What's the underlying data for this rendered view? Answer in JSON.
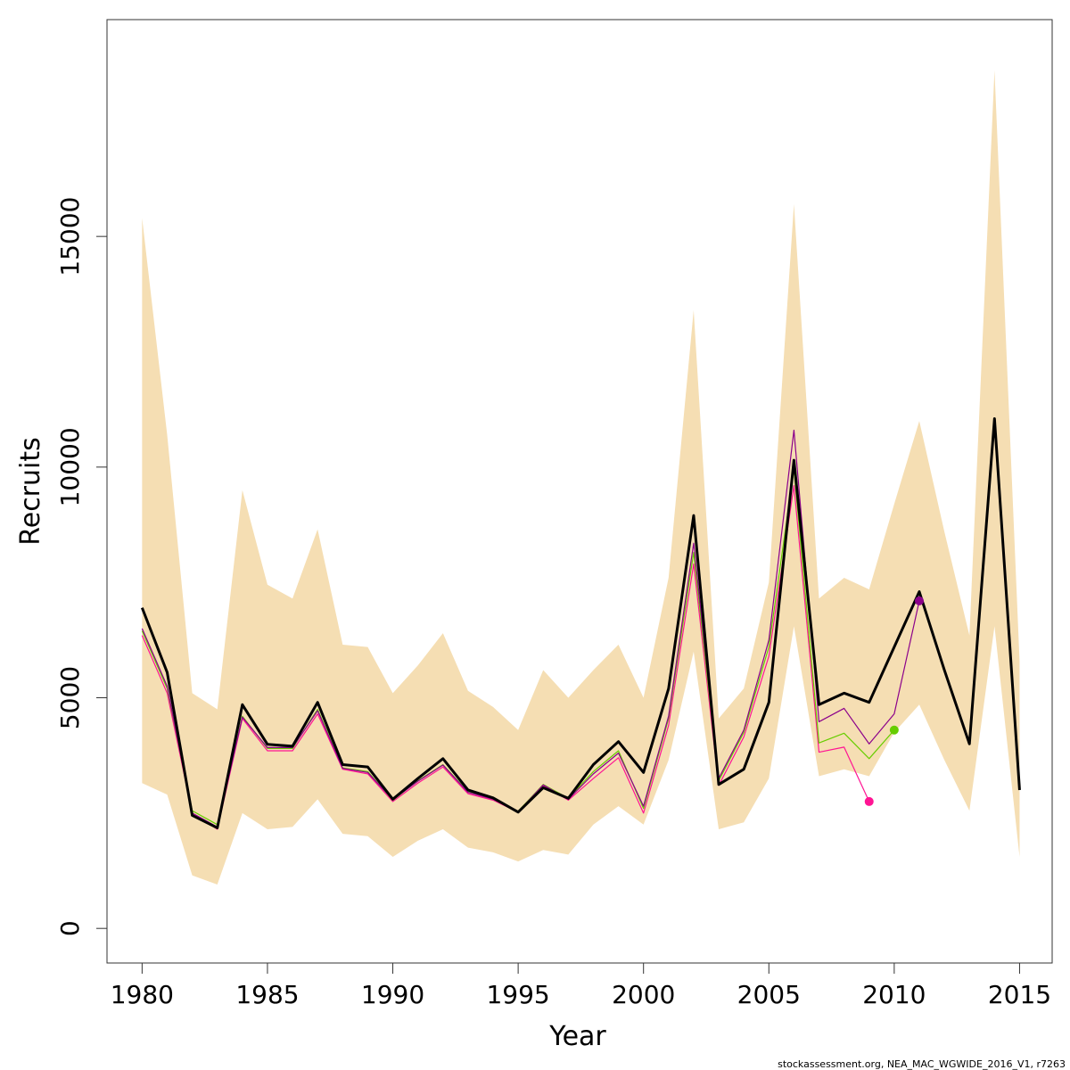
{
  "chart_data": {
    "type": "line",
    "title": "",
    "xlabel": "Year",
    "ylabel": "Recruits",
    "xlim": [
      1978.6,
      2016.3
    ],
    "ylim": [
      -750,
      19700
    ],
    "x_ticks": [
      1980,
      1985,
      1990,
      1995,
      2000,
      2005,
      2010,
      2015
    ],
    "y_ticks": [
      0,
      5000,
      10000,
      15000
    ],
    "grid": false,
    "legend": "none",
    "caption": "stockassessment.org, NEA_MAC_WGWIDE_2016_V1, r7263",
    "colors": {
      "band": "#f5deb3",
      "main": "#000000",
      "series_2009": "#ff1493",
      "series_2010": "#66cd00",
      "series_2011": "#8b008b"
    },
    "years": [
      1980,
      1981,
      1982,
      1983,
      1984,
      1985,
      1986,
      1987,
      1988,
      1989,
      1990,
      1991,
      1992,
      1993,
      1994,
      1995,
      1996,
      1997,
      1998,
      1999,
      2000,
      2001,
      2002,
      2003,
      2004,
      2005,
      2006,
      2007,
      2008,
      2009,
      2010,
      2011,
      2012,
      2013,
      2014,
      2015
    ],
    "band_upper": [
      15400,
      10700,
      5100,
      4750,
      9500,
      7450,
      7150,
      8650,
      6150,
      6100,
      5100,
      5700,
      6400,
      5150,
      4800,
      4300,
      5600,
      5000,
      5600,
      6150,
      5000,
      7600,
      13400,
      4550,
      5200,
      7500,
      15700,
      7150,
      7600,
      7350,
      9200,
      11000,
      8600,
      6350,
      18600,
      5800
    ],
    "band_lower": [
      3150,
      2900,
      1150,
      950,
      2500,
      2150,
      2200,
      2800,
      2050,
      2000,
      1550,
      1900,
      2150,
      1750,
      1650,
      1450,
      1700,
      1600,
      2250,
      2650,
      2250,
      3650,
      6000,
      2150,
      2300,
      3250,
      6550,
      3300,
      3450,
      3300,
      4250,
      4850,
      3650,
      2550,
      6550,
      1550
    ],
    "series": [
      {
        "name": "",
        "key": "main",
        "x": [
          1980,
          1981,
          1982,
          1983,
          1984,
          1985,
          1986,
          1987,
          1988,
          1989,
          1990,
          1991,
          1992,
          1993,
          1994,
          1995,
          1996,
          1997,
          1998,
          1999,
          2000,
          2001,
          2002,
          2003,
          2004,
          2005,
          2006,
          2007,
          2008,
          2009,
          2010,
          2011,
          2012,
          2013,
          2014,
          2015
        ],
        "y": [
          6950,
          5550,
          2450,
          2180,
          4850,
          3990,
          3950,
          4900,
          3550,
          3500,
          2800,
          3250,
          3680,
          3000,
          2830,
          2520,
          3050,
          2820,
          3550,
          4050,
          3380,
          5200,
          8950,
          3120,
          3450,
          4900,
          10150,
          4850,
          5100,
          4900,
          6100,
          7300,
          5600,
          4000,
          11050,
          3000
        ]
      },
      {
        "name": "",
        "key": "series_2009",
        "x": [
          1980,
          1981,
          1982,
          1983,
          1984,
          1985,
          1986,
          1987,
          1988,
          1989,
          1990,
          1991,
          1992,
          1993,
          1994,
          1995,
          1996,
          1997,
          1998,
          1999,
          2000,
          2001,
          2002,
          2003,
          2004,
          2005,
          2006,
          2007,
          2008,
          2009
        ],
        "y": [
          6350,
          5100,
          2500,
          2150,
          4550,
          3850,
          3850,
          4650,
          3450,
          3350,
          2750,
          3150,
          3500,
          2920,
          2780,
          2520,
          3100,
          2780,
          3250,
          3700,
          2500,
          4400,
          7900,
          3100,
          4150,
          5900,
          9600,
          3820,
          3930,
          2750
        ]
      },
      {
        "name": "",
        "key": "series_2010",
        "x": [
          1980,
          1981,
          1982,
          1983,
          1984,
          1985,
          1986,
          1987,
          1988,
          1989,
          1990,
          1991,
          1992,
          1993,
          1994,
          1995,
          1996,
          1997,
          1998,
          1999,
          2000,
          2001,
          2002,
          2003,
          2004,
          2005,
          2006,
          2007,
          2008,
          2009,
          2010
        ],
        "y": [
          6450,
          5200,
          2550,
          2250,
          4600,
          3900,
          3900,
          4750,
          3480,
          3400,
          2780,
          3200,
          3550,
          2960,
          2800,
          2540,
          3120,
          2820,
          3400,
          3850,
          2600,
          4550,
          8150,
          3200,
          4250,
          6100,
          9950,
          4020,
          4230,
          3680,
          4300
        ]
      },
      {
        "name": "",
        "key": "series_2011",
        "x": [
          1980,
          1981,
          1982,
          1983,
          1984,
          1985,
          1986,
          1987,
          1988,
          1989,
          1990,
          1991,
          1992,
          1993,
          1994,
          1995,
          1996,
          1997,
          1998,
          1999,
          2000,
          2001,
          2002,
          2003,
          2004,
          2005,
          2006,
          2007,
          2008,
          2009,
          2010,
          2011
        ],
        "y": [
          6500,
          5250,
          2500,
          2200,
          4580,
          3920,
          3920,
          4720,
          3470,
          3380,
          2790,
          3190,
          3540,
          2950,
          2800,
          2530,
          3110,
          2800,
          3350,
          3800,
          2650,
          4600,
          8350,
          3250,
          4300,
          6250,
          10800,
          4480,
          4770,
          4000,
          4650,
          7100
        ]
      }
    ],
    "end_points": [
      {
        "key": "series_2009",
        "x": 2009,
        "y": 2750
      },
      {
        "key": "series_2010",
        "x": 2010,
        "y": 4300
      },
      {
        "key": "series_2011",
        "x": 2011,
        "y": 7100
      }
    ]
  }
}
